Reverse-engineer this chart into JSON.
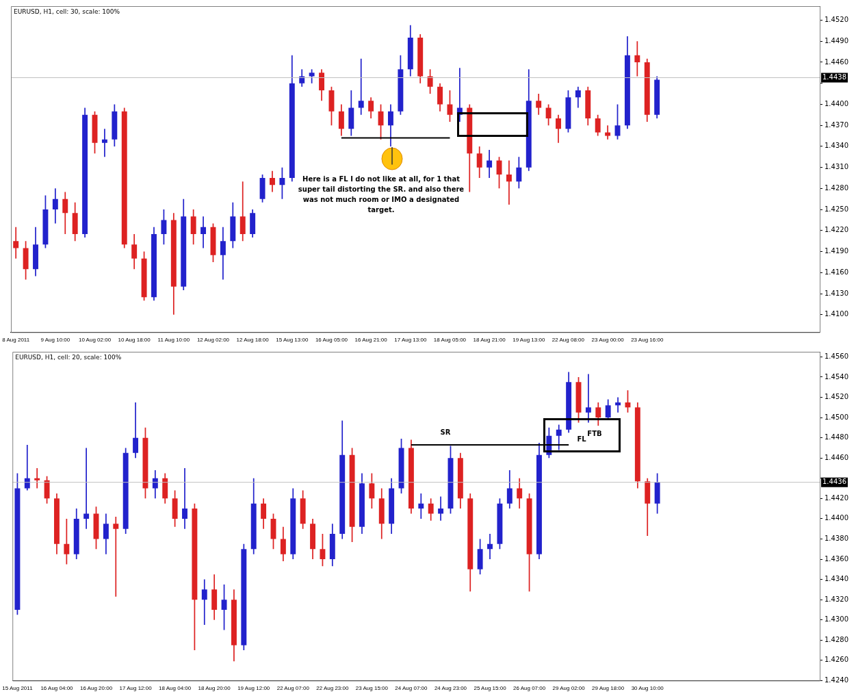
{
  "chart_data": [
    {
      "type": "candlestick",
      "title": "EURUSD, H1, cell: 30, scale: 100%",
      "categories": [
        "8 Aug 2011",
        null,
        null,
        null,
        "9 Aug 10:00",
        null,
        null,
        null,
        "10 Aug 02:00",
        null,
        null,
        null,
        "10 Aug 18:00",
        null,
        null,
        null,
        "11 Aug 10:00",
        null,
        null,
        null,
        "12 Aug 02:00",
        null,
        null,
        null,
        "12 Aug 18:00",
        null,
        null,
        null,
        "15 Aug 13:00",
        null,
        null,
        null,
        "16 Aug 05:00",
        null,
        null,
        null,
        "16 Aug 21:00",
        null,
        null,
        null,
        "17 Aug 13:00",
        null,
        null,
        null,
        "18 Aug 05:00",
        null,
        null,
        null,
        "18 Aug 21:00",
        null,
        null,
        null,
        "19 Aug 13:00",
        null,
        null,
        null,
        "22 Aug 08:00",
        null,
        null,
        null,
        "23 Aug 00:00",
        null,
        null,
        null,
        "23 Aug 16:00",
        null,
        null,
        null,
        null,
        null,
        null,
        null,
        null,
        null,
        null,
        null,
        null,
        null,
        null,
        null,
        null,
        null
      ],
      "ohlc": [
        [
          1.4205,
          1.4225,
          1.418,
          1.4195
        ],
        [
          1.4195,
          1.4205,
          1.415,
          1.4165
        ],
        [
          1.4165,
          1.4225,
          1.4155,
          1.42
        ],
        [
          1.42,
          1.427,
          1.4195,
          1.425
        ],
        [
          1.425,
          1.428,
          1.423,
          1.4265
        ],
        [
          1.4265,
          1.4275,
          1.4215,
          1.4245
        ],
        [
          1.4245,
          1.426,
          1.4205,
          1.4215
        ],
        [
          1.4215,
          1.4395,
          1.421,
          1.4385
        ],
        [
          1.4385,
          1.439,
          1.433,
          1.4345
        ],
        [
          1.4345,
          1.4365,
          1.4325,
          1.435
        ],
        [
          1.435,
          1.44,
          1.434,
          1.439
        ],
        [
          1.439,
          1.4395,
          1.4195,
          1.42
        ],
        [
          1.42,
          1.4215,
          1.4165,
          1.418
        ],
        [
          1.418,
          1.419,
          1.412,
          1.4125
        ],
        [
          1.4125,
          1.4225,
          1.412,
          1.4215
        ],
        [
          1.4215,
          1.425,
          1.42,
          1.4235
        ],
        [
          1.4235,
          1.4245,
          1.41,
          1.414
        ],
        [
          1.414,
          1.4265,
          1.4135,
          1.424
        ],
        [
          1.424,
          1.425,
          1.42,
          1.4215
        ],
        [
          1.4215,
          1.424,
          1.4195,
          1.4225
        ],
        [
          1.4225,
          1.423,
          1.4175,
          1.4185
        ],
        [
          1.4185,
          1.4225,
          1.415,
          1.4205
        ],
        [
          1.4205,
          1.426,
          1.4195,
          1.424
        ],
        [
          1.424,
          1.429,
          1.4205,
          1.4215
        ],
        [
          1.4215,
          1.425,
          1.421,
          1.4245
        ],
        [
          1.4265,
          1.43,
          1.426,
          1.4295
        ],
        [
          1.4295,
          1.4305,
          1.4275,
          1.4285
        ],
        [
          1.4285,
          1.431,
          1.4265,
          1.4295
        ],
        [
          1.4295,
          1.447,
          1.429,
          1.443
        ],
        [
          1.443,
          1.445,
          1.4425,
          1.444
        ],
        [
          1.444,
          1.445,
          1.443,
          1.4445
        ],
        [
          1.4445,
          1.445,
          1.4405,
          1.442
        ],
        [
          1.442,
          1.4425,
          1.437,
          1.439
        ],
        [
          1.439,
          1.44,
          1.4355,
          1.4365
        ],
        [
          1.4365,
          1.442,
          1.4355,
          1.4395
        ],
        [
          1.4395,
          1.4465,
          1.4385,
          1.4405
        ],
        [
          1.4405,
          1.441,
          1.438,
          1.439
        ],
        [
          1.439,
          1.44,
          1.435,
          1.437
        ],
        [
          1.437,
          1.44,
          1.434,
          1.439
        ],
        [
          1.439,
          1.447,
          1.4385,
          1.445
        ],
        [
          1.445,
          1.4513,
          1.444,
          1.4495
        ],
        [
          1.4495,
          1.45,
          1.443,
          1.444
        ],
        [
          1.444,
          1.445,
          1.4415,
          1.4425
        ],
        [
          1.4425,
          1.443,
          1.439,
          1.44
        ],
        [
          1.44,
          1.442,
          1.4375,
          1.4385
        ],
        [
          1.4385,
          1.4452,
          1.4375,
          1.4395
        ],
        [
          1.4395,
          1.44,
          1.4275,
          1.433
        ],
        [
          1.433,
          1.434,
          1.4295,
          1.431
        ],
        [
          1.431,
          1.4335,
          1.4295,
          1.432
        ],
        [
          1.432,
          1.4325,
          1.428,
          1.43
        ],
        [
          1.43,
          1.432,
          1.4257,
          1.429
        ],
        [
          1.429,
          1.4325,
          1.428,
          1.431
        ],
        [
          1.431,
          1.445,
          1.4305,
          1.4405
        ],
        [
          1.4405,
          1.4415,
          1.4385,
          1.4395
        ],
        [
          1.4395,
          1.44,
          1.437,
          1.438
        ],
        [
          1.438,
          1.4385,
          1.4345,
          1.4365
        ],
        [
          1.4365,
          1.442,
          1.436,
          1.441
        ],
        [
          1.441,
          1.4425,
          1.4395,
          1.442
        ],
        [
          1.442,
          1.4425,
          1.437,
          1.438
        ],
        [
          1.438,
          1.4385,
          1.4355,
          1.436
        ],
        [
          1.436,
          1.437,
          1.435,
          1.4355
        ],
        [
          1.4355,
          1.44,
          1.435,
          1.437
        ],
        [
          1.437,
          1.4497,
          1.4365,
          1.447
        ],
        [
          1.447,
          1.449,
          1.444,
          1.446
        ],
        [
          1.446,
          1.4465,
          1.4375,
          1.4385
        ],
        [
          1.4385,
          1.444,
          1.438,
          1.4435
        ],
        null,
        null,
        null,
        null,
        null,
        null,
        null,
        null,
        null,
        null,
        null,
        null,
        null,
        null,
        null,
        null
      ],
      "colors": [
        "#dd2222",
        "#dd2222",
        "#2222cc",
        "#2222cc",
        "#2222cc",
        "#dd2222",
        "#dd2222",
        "#2222cc",
        "#dd2222",
        "#2222cc",
        "#2222cc",
        "#dd2222",
        "#dd2222",
        "#dd2222",
        "#2222cc",
        "#2222cc",
        "#dd2222",
        "#2222cc",
        "#dd2222",
        "#2222cc",
        "#dd2222",
        "#2222cc",
        "#2222cc",
        "#dd2222",
        "#2222cc",
        "#2222cc",
        "#dd2222",
        "#2222cc",
        "#2222cc",
        "#2222cc",
        "#2222cc",
        "#dd2222",
        "#dd2222",
        "#dd2222",
        "#2222cc",
        "#2222cc",
        "#dd2222",
        "#dd2222",
        "#2222cc",
        "#2222cc",
        "#2222cc",
        "#dd2222",
        "#dd2222",
        "#dd2222",
        "#dd2222",
        "#2222cc",
        "#dd2222",
        "#dd2222",
        "#2222cc",
        "#dd2222",
        "#dd2222",
        "#2222cc",
        "#2222cc",
        "#dd2222",
        "#dd2222",
        "#dd2222",
        "#2222cc",
        "#2222cc",
        "#dd2222",
        "#dd2222",
        "#dd2222",
        "#2222cc",
        "#2222cc",
        "#dd2222",
        "#dd2222",
        "#2222cc",
        null,
        null,
        null,
        null,
        null,
        null,
        null,
        null,
        null,
        null,
        null,
        null,
        null,
        null,
        null,
        null
      ],
      "series": [
        {
          "type": "line",
          "color": "#000000",
          "values": [
            null,
            null,
            null,
            null,
            null,
            null,
            null,
            null,
            null,
            null,
            null,
            null,
            null,
            null,
            null,
            null,
            null,
            null,
            null,
            null,
            null,
            null,
            null,
            null,
            null,
            null,
            null,
            null,
            null,
            null,
            null,
            null,
            null,
            1.4352,
            1.4352,
            1.4352,
            1.4352,
            1.4352,
            1.4352,
            1.4352,
            1.4352,
            1.4352,
            1.4352,
            1.4352,
            1.4352,
            null,
            null,
            null,
            null,
            null,
            null,
            null,
            null,
            null,
            null,
            null,
            null,
            null,
            null,
            null,
            null,
            null,
            null,
            null,
            null,
            null,
            null,
            null,
            null,
            null,
            null,
            null,
            null,
            null,
            null,
            null,
            null,
            null,
            null,
            null,
            null,
            null
          ]
        }
      ],
      "ylim": [
        1.4075,
        1.454
      ],
      "yticks": [
        {
          "value": 1.452,
          "label": "1.4520"
        },
        {
          "value": 1.449,
          "label": "1.4490"
        },
        {
          "value": 1.446,
          "label": "1.4460"
        },
        {
          "value": 1.443,
          "label": null
        },
        {
          "value": 1.44,
          "label": "1.4400"
        },
        {
          "value": 1.437,
          "label": "1.4370"
        },
        {
          "value": 1.434,
          "label": "1.4340"
        },
        {
          "value": 1.431,
          "label": "1.4310"
        },
        {
          "value": 1.428,
          "label": "1.4280"
        },
        {
          "value": 1.425,
          "label": "1.4250"
        },
        {
          "value": 1.422,
          "label": "1.4220"
        },
        {
          "value": 1.419,
          "label": "1.4190"
        },
        {
          "value": 1.416,
          "label": "1.4160"
        },
        {
          "value": 1.413,
          "label": "1.4130"
        },
        {
          "value": 1.41,
          "label": "1.4100"
        }
      ],
      "ref_lines": [
        {
          "axis": "y",
          "value": 1.4438,
          "label": "1.4438",
          "color": "#c0c0c0"
        }
      ],
      "annotations": [
        "Here is a FL I do not like at all, for 1 that super tail distorting the SR. and also there was not much room or IMO a designated target."
      ]
    },
    {
      "type": "candlestick",
      "title": "EURUSD, H1, cell: 20, scale: 100%",
      "categories": [
        "15 Aug 2011",
        null,
        null,
        null,
        "16 Aug 04:00",
        null,
        null,
        null,
        "16 Aug 20:00",
        null,
        null,
        null,
        "17 Aug 12:00",
        null,
        null,
        null,
        "18 Aug 04:00",
        null,
        null,
        null,
        "18 Aug 20:00",
        null,
        null,
        null,
        "19 Aug 12:00",
        null,
        null,
        null,
        "22 Aug 07:00",
        null,
        null,
        null,
        "22 Aug 23:00",
        null,
        null,
        null,
        "23 Aug 15:00",
        null,
        null,
        null,
        "24 Aug 07:00",
        null,
        null,
        null,
        "24 Aug 23:00",
        null,
        null,
        null,
        "25 Aug 15:00",
        null,
        null,
        null,
        "26 Aug 07:00",
        null,
        null,
        null,
        "29 Aug 02:00",
        null,
        null,
        null,
        "29 Aug 18:00",
        null,
        null,
        null,
        "30 Aug 10:00",
        null,
        null,
        null,
        null,
        null,
        null,
        null,
        null,
        null,
        null,
        null,
        null,
        null,
        null,
        null,
        null,
        null
      ],
      "ohlc": [
        [
          1.431,
          1.4445,
          1.4305,
          1.443
        ],
        [
          1.443,
          1.4473,
          1.4428,
          1.444
        ],
        [
          1.444,
          1.445,
          1.443,
          1.4438
        ],
        [
          1.4438,
          1.4442,
          1.4415,
          1.442
        ],
        [
          1.442,
          1.4425,
          1.4365,
          1.4375
        ],
        [
          1.4375,
          1.44,
          1.4355,
          1.4365
        ],
        [
          1.4365,
          1.441,
          1.436,
          1.44
        ],
        [
          1.44,
          1.447,
          1.439,
          1.4405
        ],
        [
          1.4405,
          1.4412,
          1.437,
          1.438
        ],
        [
          1.438,
          1.4405,
          1.4365,
          1.4395
        ],
        [
          1.4395,
          1.4402,
          1.4323,
          1.439
        ],
        [
          1.439,
          1.447,
          1.4385,
          1.4465
        ],
        [
          1.4465,
          1.4515,
          1.446,
          1.448
        ],
        [
          1.448,
          1.449,
          1.442,
          1.443
        ],
        [
          1.443,
          1.4448,
          1.442,
          1.444
        ],
        [
          1.444,
          1.4445,
          1.4415,
          1.442
        ],
        [
          1.442,
          1.4428,
          1.4392,
          1.44
        ],
        [
          1.44,
          1.445,
          1.439,
          1.441
        ],
        [
          1.441,
          1.4415,
          1.427,
          1.432
        ],
        [
          1.432,
          1.434,
          1.4295,
          1.433
        ],
        [
          1.433,
          1.4345,
          1.43,
          1.431
        ],
        [
          1.431,
          1.4335,
          1.429,
          1.432
        ],
        [
          1.432,
          1.433,
          1.4259,
          1.4275
        ],
        [
          1.4275,
          1.4375,
          1.427,
          1.437
        ],
        [
          1.437,
          1.444,
          1.4365,
          1.4415
        ],
        [
          1.4415,
          1.442,
          1.439,
          1.44
        ],
        [
          1.44,
          1.4405,
          1.437,
          1.438
        ],
        [
          1.438,
          1.4392,
          1.4358,
          1.4365
        ],
        [
          1.4365,
          1.443,
          1.436,
          1.442
        ],
        [
          1.442,
          1.4428,
          1.439,
          1.4395
        ],
        [
          1.4395,
          1.44,
          1.436,
          1.437
        ],
        [
          1.437,
          1.4385,
          1.4353,
          1.436
        ],
        [
          1.436,
          1.4395,
          1.4353,
          1.4385
        ],
        [
          1.4385,
          1.4497,
          1.438,
          1.4463
        ],
        [
          1.4463,
          1.447,
          1.4377,
          1.4392
        ],
        [
          1.4392,
          1.4445,
          1.4385,
          1.4435
        ],
        [
          1.4435,
          1.4445,
          1.441,
          1.442
        ],
        [
          1.442,
          1.443,
          1.438,
          1.4395
        ],
        [
          1.4395,
          1.444,
          1.4385,
          1.443
        ],
        [
          1.443,
          1.4479,
          1.4425,
          1.447
        ],
        [
          1.447,
          1.4478,
          1.4405,
          1.441
        ],
        [
          1.441,
          1.4425,
          1.44,
          1.4415
        ],
        [
          1.4415,
          1.442,
          1.4398,
          1.4405
        ],
        [
          1.4405,
          1.4422,
          1.4398,
          1.441
        ],
        [
          1.441,
          1.4472,
          1.4405,
          1.446
        ],
        [
          1.446,
          1.4465,
          1.441,
          1.442
        ],
        [
          1.442,
          1.4425,
          1.4328,
          1.435
        ],
        [
          1.435,
          1.438,
          1.4345,
          1.437
        ],
        [
          1.437,
          1.4385,
          1.436,
          1.4375
        ],
        [
          1.4375,
          1.442,
          1.437,
          1.4415
        ],
        [
          1.4415,
          1.4448,
          1.441,
          1.443
        ],
        [
          1.443,
          1.444,
          1.441,
          1.442
        ],
        [
          1.442,
          1.4425,
          1.4328,
          1.4365
        ],
        [
          1.4365,
          1.4475,
          1.436,
          1.4463
        ],
        [
          1.4463,
          1.449,
          1.446,
          1.4482
        ],
        [
          1.4482,
          1.4493,
          1.4468,
          1.4488
        ],
        [
          1.4488,
          1.4545,
          1.4485,
          1.4535
        ],
        [
          1.4535,
          1.454,
          1.4495,
          1.4505
        ],
        [
          1.4505,
          1.4543,
          1.4495,
          1.451
        ],
        [
          1.451,
          1.4515,
          1.4492,
          1.45
        ],
        [
          1.45,
          1.4518,
          1.4498,
          1.4512
        ],
        [
          1.4512,
          1.452,
          1.4505,
          1.4515
        ],
        [
          1.4515,
          1.4527,
          1.4505,
          1.451
        ],
        [
          1.451,
          1.4515,
          1.443,
          1.4437
        ],
        [
          1.4437,
          1.444,
          1.4383,
          1.4415
        ],
        [
          1.4415,
          1.4445,
          1.4405,
          1.4436
        ],
        null,
        null,
        null,
        null,
        null,
        null,
        null,
        null,
        null,
        null,
        null,
        null,
        null,
        null,
        null,
        null
      ],
      "colors": [
        "#2222cc",
        "#2222cc",
        "#dd2222",
        "#dd2222",
        "#dd2222",
        "#dd2222",
        "#2222cc",
        "#2222cc",
        "#dd2222",
        "#2222cc",
        "#dd2222",
        "#2222cc",
        "#2222cc",
        "#dd2222",
        "#2222cc",
        "#dd2222",
        "#dd2222",
        "#2222cc",
        "#dd2222",
        "#2222cc",
        "#dd2222",
        "#2222cc",
        "#dd2222",
        "#2222cc",
        "#2222cc",
        "#dd2222",
        "#dd2222",
        "#dd2222",
        "#2222cc",
        "#dd2222",
        "#dd2222",
        "#dd2222",
        "#2222cc",
        "#2222cc",
        "#dd2222",
        "#2222cc",
        "#dd2222",
        "#dd2222",
        "#2222cc",
        "#2222cc",
        "#dd2222",
        "#2222cc",
        "#dd2222",
        "#2222cc",
        "#2222cc",
        "#dd2222",
        "#dd2222",
        "#2222cc",
        "#2222cc",
        "#2222cc",
        "#2222cc",
        "#dd2222",
        "#dd2222",
        "#2222cc",
        "#2222cc",
        "#2222cc",
        "#2222cc",
        "#dd2222",
        "#2222cc",
        "#dd2222",
        "#2222cc",
        "#2222cc",
        "#dd2222",
        "#dd2222",
        "#dd2222",
        "#2222cc",
        null,
        null,
        null,
        null,
        null,
        null,
        null,
        null,
        null,
        null,
        null,
        null,
        null,
        null,
        null,
        null
      ],
      "series": [
        {
          "type": "line",
          "color": "#000000",
          "values": [
            null,
            null,
            null,
            null,
            null,
            null,
            null,
            null,
            null,
            null,
            null,
            null,
            null,
            null,
            null,
            null,
            null,
            null,
            null,
            null,
            null,
            null,
            null,
            null,
            null,
            null,
            null,
            null,
            null,
            null,
            null,
            null,
            null,
            null,
            null,
            null,
            null,
            null,
            null,
            null,
            1.4473,
            1.4473,
            1.4473,
            1.4473,
            1.4473,
            1.4473,
            1.4473,
            1.4473,
            1.4473,
            1.4473,
            1.4473,
            1.4473,
            1.4473,
            1.4473,
            1.4473,
            1.4473,
            1.4473,
            null,
            null,
            null,
            null,
            null,
            null,
            null,
            null,
            null,
            null,
            null,
            null,
            null,
            null,
            null,
            null,
            null,
            null,
            null,
            null,
            null,
            null,
            null,
            null,
            null
          ]
        }
      ],
      "ylim": [
        1.424,
        1.4565
      ],
      "yticks": [
        {
          "value": 1.456,
          "label": "1.4560"
        },
        {
          "value": 1.454,
          "label": "1.4540"
        },
        {
          "value": 1.452,
          "label": "1.4520"
        },
        {
          "value": 1.45,
          "label": "1.4500"
        },
        {
          "value": 1.448,
          "label": "1.4480"
        },
        {
          "value": 1.446,
          "label": "1.4460"
        },
        {
          "value": 1.444,
          "label": null
        },
        {
          "value": 1.442,
          "label": "1.4420"
        },
        {
          "value": 1.44,
          "label": "1.4400"
        },
        {
          "value": 1.438,
          "label": "1.4380"
        },
        {
          "value": 1.436,
          "label": "1.4360"
        },
        {
          "value": 1.434,
          "label": "1.4340"
        },
        {
          "value": 1.432,
          "label": "1.4320"
        },
        {
          "value": 1.43,
          "label": "1.4300"
        },
        {
          "value": 1.428,
          "label": "1.4280"
        },
        {
          "value": 1.426,
          "label": "1.4260"
        },
        {
          "value": 1.424,
          "label": "1.4240"
        }
      ],
      "ref_lines": [
        {
          "axis": "y",
          "value": 1.4436,
          "label": "1.4436",
          "color": "#c0c0c0"
        }
      ],
      "annotations": [
        "SR",
        "FL",
        "FTB"
      ]
    }
  ]
}
